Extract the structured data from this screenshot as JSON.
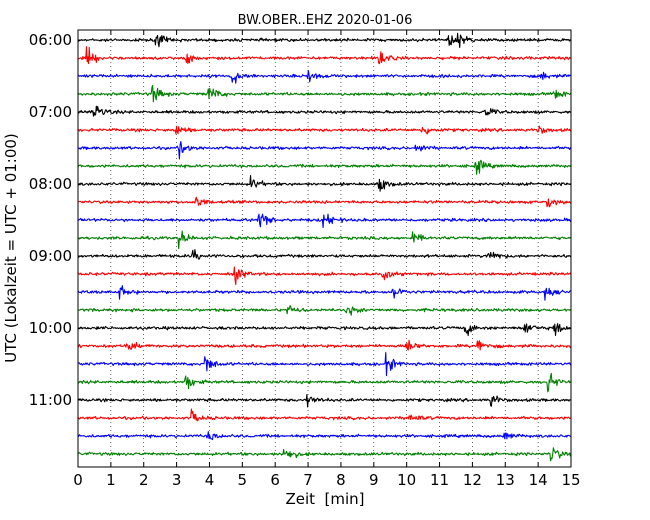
{
  "chart_data": {
    "type": "line",
    "title": "BW.OBER..EHZ 2020-01-06",
    "xlabel": "Zeit  [min]",
    "ylabel": "UTC (Lokalzeit = UTC + 01:00)",
    "xlim": [
      0,
      15
    ],
    "x_ticks": [
      0,
      1,
      2,
      3,
      4,
      5,
      6,
      7,
      8,
      9,
      10,
      11,
      12,
      13,
      14,
      15
    ],
    "x_tick_labels": [
      "0",
      "1",
      "2",
      "3",
      "4",
      "5",
      "6",
      "7",
      "8",
      "9",
      "10",
      "11",
      "12",
      "13",
      "14",
      "15"
    ],
    "y_tick_labels": [
      "06:00",
      "07:00",
      "08:00",
      "09:00",
      "10:00",
      "11:00"
    ],
    "y_ticks_row_index": [
      0,
      4,
      8,
      12,
      16,
      20
    ],
    "trace_minutes": 15,
    "colors": [
      "#000000",
      "#ff0000",
      "#0000ff",
      "#008000"
    ],
    "grid": "vertical dotted lines at each minute",
    "rows": [
      {
        "start": "06:00",
        "color": "#000000",
        "events": [
          {
            "t": 2.4,
            "amp": 1.2
          },
          {
            "t": 11.3,
            "amp": 1.0
          },
          {
            "t": 11.6,
            "amp": 1.1
          }
        ]
      },
      {
        "start": "06:15",
        "color": "#ff0000",
        "events": [
          {
            "t": 0.3,
            "amp": 1.5
          },
          {
            "t": 3.3,
            "amp": 0.8
          },
          {
            "t": 9.2,
            "amp": 1.1
          }
        ]
      },
      {
        "start": "06:30",
        "color": "#0000ff",
        "events": [
          {
            "t": 4.7,
            "amp": 1.6
          },
          {
            "t": 7.0,
            "amp": 1.3
          },
          {
            "t": 14.1,
            "amp": 0.7
          }
        ]
      },
      {
        "start": "06:45",
        "color": "#008000",
        "events": [
          {
            "t": 2.3,
            "amp": 1.4
          },
          {
            "t": 4.0,
            "amp": 1.6
          },
          {
            "t": 14.5,
            "amp": 0.9
          }
        ]
      },
      {
        "start": "07:00",
        "color": "#000000",
        "events": [
          {
            "t": 0.5,
            "amp": 2.0
          },
          {
            "t": 12.4,
            "amp": 0.9
          }
        ]
      },
      {
        "start": "07:15",
        "color": "#ff0000",
        "events": [
          {
            "t": 3.0,
            "amp": 1.0
          },
          {
            "t": 10.5,
            "amp": 1.0
          },
          {
            "t": 14.0,
            "amp": 0.8
          }
        ]
      },
      {
        "start": "07:30",
        "color": "#0000ff",
        "events": [
          {
            "t": 3.1,
            "amp": 1.4
          },
          {
            "t": 10.3,
            "amp": 0.8
          }
        ]
      },
      {
        "start": "07:45",
        "color": "#008000",
        "events": [
          {
            "t": 12.1,
            "amp": 1.5
          }
        ]
      },
      {
        "start": "08:00",
        "color": "#000000",
        "events": [
          {
            "t": 5.3,
            "amp": 1.0
          },
          {
            "t": 9.2,
            "amp": 1.2
          }
        ]
      },
      {
        "start": "08:15",
        "color": "#ff0000",
        "events": [
          {
            "t": 3.6,
            "amp": 1.0
          },
          {
            "t": 14.3,
            "amp": 0.9
          }
        ]
      },
      {
        "start": "08:30",
        "color": "#0000ff",
        "events": [
          {
            "t": 5.5,
            "amp": 1.8
          },
          {
            "t": 7.5,
            "amp": 1.6
          }
        ]
      },
      {
        "start": "08:45",
        "color": "#008000",
        "events": [
          {
            "t": 3.1,
            "amp": 1.2
          },
          {
            "t": 10.2,
            "amp": 0.8
          }
        ]
      },
      {
        "start": "09:00",
        "color": "#000000",
        "events": [
          {
            "t": 3.5,
            "amp": 1.0
          },
          {
            "t": 12.5,
            "amp": 1.5
          }
        ]
      },
      {
        "start": "09:15",
        "color": "#ff0000",
        "events": [
          {
            "t": 4.8,
            "amp": 1.3
          },
          {
            "t": 9.3,
            "amp": 1.0
          }
        ]
      },
      {
        "start": "09:30",
        "color": "#0000ff",
        "events": [
          {
            "t": 1.3,
            "amp": 1.1
          },
          {
            "t": 9.6,
            "amp": 1.2
          },
          {
            "t": 14.2,
            "amp": 1.0
          }
        ]
      },
      {
        "start": "09:45",
        "color": "#008000",
        "events": [
          {
            "t": 6.4,
            "amp": 0.9
          },
          {
            "t": 8.2,
            "amp": 1.0
          }
        ]
      },
      {
        "start": "10:00",
        "color": "#000000",
        "events": [
          {
            "t": 11.8,
            "amp": 1.3
          },
          {
            "t": 13.6,
            "amp": 1.2
          },
          {
            "t": 14.5,
            "amp": 1.2
          }
        ]
      },
      {
        "start": "10:15",
        "color": "#ff0000",
        "events": [
          {
            "t": 1.5,
            "amp": 1.0
          },
          {
            "t": 10.0,
            "amp": 1.4
          },
          {
            "t": 12.2,
            "amp": 1.3
          }
        ]
      },
      {
        "start": "10:30",
        "color": "#0000ff",
        "events": [
          {
            "t": 3.9,
            "amp": 1.6
          },
          {
            "t": 9.4,
            "amp": 1.5
          }
        ]
      },
      {
        "start": "10:45",
        "color": "#008000",
        "events": [
          {
            "t": 3.3,
            "amp": 1.2
          },
          {
            "t": 14.3,
            "amp": 1.8
          }
        ]
      },
      {
        "start": "11:00",
        "color": "#000000",
        "events": [
          {
            "t": 7.0,
            "amp": 1.0
          },
          {
            "t": 12.6,
            "amp": 1.0
          }
        ]
      },
      {
        "start": "11:15",
        "color": "#ff0000",
        "events": [
          {
            "t": 3.5,
            "amp": 1.0
          },
          {
            "t": 10.1,
            "amp": 1.0
          }
        ]
      },
      {
        "start": "11:30",
        "color": "#0000ff",
        "events": [
          {
            "t": 4.0,
            "amp": 0.9
          },
          {
            "t": 13.0,
            "amp": 0.8
          }
        ]
      },
      {
        "start": "11:45",
        "color": "#008000",
        "events": [
          {
            "t": 6.3,
            "amp": 1.5
          },
          {
            "t": 14.4,
            "amp": 1.6
          }
        ]
      }
    ]
  }
}
